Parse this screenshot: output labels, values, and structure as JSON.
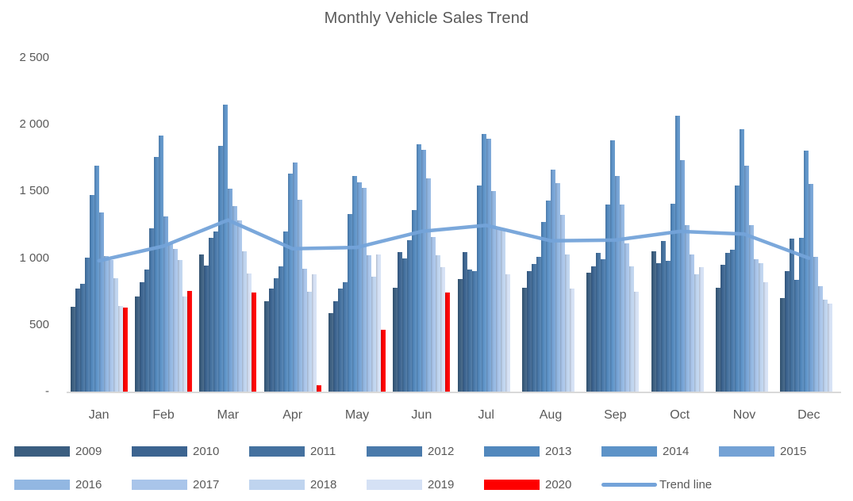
{
  "title": "Monthly Vehicle Sales Trend",
  "chart_data": {
    "type": "bar",
    "title": "Monthly Vehicle Sales Trend",
    "xlabel": "",
    "ylabel": "",
    "ylim": [
      0,
      2500
    ],
    "grid": false,
    "legend_position": "bottom",
    "categories": [
      "Jan",
      "Feb",
      "Mar",
      "Apr",
      "May",
      "Jun",
      "Jul",
      "Aug",
      "Sep",
      "Oct",
      "Nov",
      "Dec"
    ],
    "yticks": [
      {
        "label": "2 500",
        "value": 2500
      },
      {
        "label": "2 000",
        "value": 2000
      },
      {
        "label": "1 500",
        "value": 1500
      },
      {
        "label": "1 000",
        "value": 1000
      },
      {
        "label": "500",
        "value": 500
      },
      {
        "label": "-",
        "value": 0
      }
    ],
    "series": [
      {
        "name": "2009",
        "color": "#3b5e80",
        "values": [
          635,
          710,
          1030,
          680,
          590,
          780,
          845,
          780,
          890,
          1050,
          780,
          700
        ]
      },
      {
        "name": "2010",
        "color": "#3c6490",
        "values": [
          775,
          820,
          945,
          770,
          680,
          1045,
          1045,
          905,
          940,
          960,
          950,
          900
        ]
      },
      {
        "name": "2011",
        "color": "#44719f",
        "values": [
          810,
          915,
          1155,
          850,
          770,
          995,
          915,
          955,
          1040,
          1130,
          1040,
          1145
        ]
      },
      {
        "name": "2012",
        "color": "#4a7aab",
        "values": [
          1005,
          1225,
          1200,
          940,
          820,
          1135,
          905,
          1010,
          990,
          980,
          1065,
          840
        ]
      },
      {
        "name": "2013",
        "color": "#5288bd",
        "values": [
          1475,
          1760,
          1840,
          1200,
          1330,
          1360,
          1545,
          1270,
          1400,
          1405,
          1545,
          1150
        ]
      },
      {
        "name": "2014",
        "color": "#5d93c8",
        "values": [
          1690,
          1920,
          2150,
          1635,
          1615,
          1855,
          1930,
          1430,
          1885,
          2065,
          1965,
          1805
        ]
      },
      {
        "name": "2015",
        "color": "#74a2d5",
        "values": [
          1345,
          1310,
          1520,
          1715,
          1565,
          1810,
          1895,
          1660,
          1615,
          1735,
          1695,
          1555
        ]
      },
      {
        "name": "2016",
        "color": "#92b7e2",
        "values": [
          1015,
          1110,
          1390,
          1440,
          1525,
          1600,
          1500,
          1560,
          1400,
          1245,
          1250,
          1010
        ]
      },
      {
        "name": "2017",
        "color": "#a9c5ea",
        "values": [
          985,
          1070,
          1280,
          920,
          1020,
          1160,
          1220,
          1325,
          1110,
          1030,
          990,
          790
        ]
      },
      {
        "name": "2018",
        "color": "#bfd4ef",
        "values": [
          850,
          985,
          1050,
          750,
          860,
          1020,
          1210,
          1030,
          940,
          880,
          960,
          690
        ]
      },
      {
        "name": "2019",
        "color": "#d5e1f5",
        "values": [
          640,
          710,
          885,
          880,
          1025,
          930,
          880,
          770,
          750,
          930,
          820,
          660
        ]
      },
      {
        "name": "2020",
        "color": "#fe0000",
        "values": [
          630,
          755,
          745,
          45,
          465,
          740,
          null,
          null,
          null,
          null,
          null,
          null
        ]
      }
    ],
    "trend": {
      "name": "Trend line",
      "color": "#74a3d9",
      "values": [
        980,
        1090,
        1285,
        1070,
        1080,
        1200,
        1245,
        1130,
        1135,
        1200,
        1180,
        1000
      ]
    }
  },
  "legend": {
    "rows": [
      [
        {
          "label": "2009",
          "color": "#3b5e80",
          "type": "swatch"
        },
        {
          "label": "2010",
          "color": "#3c6490",
          "type": "swatch"
        },
        {
          "label": "2011",
          "color": "#44719f",
          "type": "swatch"
        },
        {
          "label": "2012",
          "color": "#4a7aab",
          "type": "swatch"
        },
        {
          "label": "2013",
          "color": "#5288bd",
          "type": "swatch"
        },
        {
          "label": "2014",
          "color": "#5d93c8",
          "type": "swatch"
        },
        {
          "label": "2015",
          "color": "#74a2d5",
          "type": "swatch"
        }
      ],
      [
        {
          "label": "2016",
          "color": "#92b7e2",
          "type": "swatch"
        },
        {
          "label": "2017",
          "color": "#a9c5ea",
          "type": "swatch"
        },
        {
          "label": "2018",
          "color": "#bfd4ef",
          "type": "swatch"
        },
        {
          "label": "2019",
          "color": "#d5e1f5",
          "type": "swatch"
        },
        {
          "label": "2020",
          "color": "#fe0000",
          "type": "swatch"
        },
        {
          "label": "Trend line",
          "color": "#74a3d9",
          "type": "line"
        }
      ]
    ]
  }
}
